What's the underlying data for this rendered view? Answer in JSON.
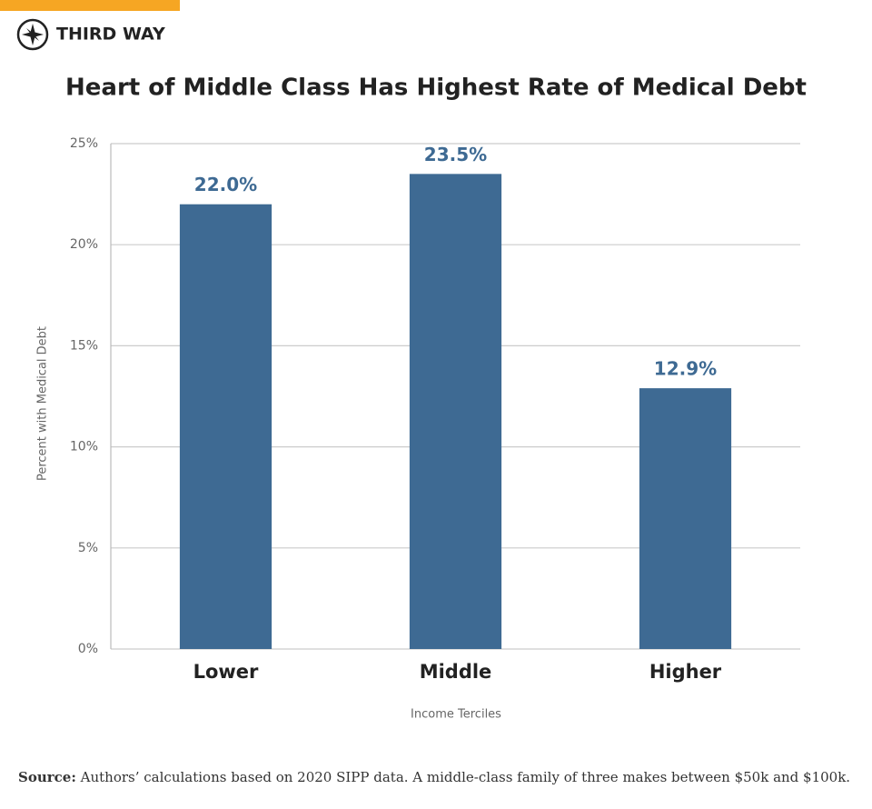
{
  "brand": "THIRD WAY",
  "chart_data": {
    "type": "bar",
    "title": "Heart of Middle Class Has Highest Rate of Medical Debt",
    "categories": [
      "Lower",
      "Middle",
      "Higher"
    ],
    "values": [
      22.0,
      23.5,
      12.9
    ],
    "value_labels": [
      "22.0%",
      "23.5%",
      "12.9%"
    ],
    "color": "#3e6a93",
    "ylim": [
      0,
      25
    ],
    "yticks": [
      {
        "value": 0,
        "label": "0%"
      },
      {
        "value": 5,
        "label": "5%"
      },
      {
        "value": 10,
        "label": "10%"
      },
      {
        "value": 15,
        "label": "15%"
      },
      {
        "value": 20,
        "label": "20%"
      },
      {
        "value": 25,
        "label": "25%"
      }
    ],
    "grid": true,
    "x_label": "Income Terciles",
    "y_label": "Percent with Medical Debt"
  },
  "source_label": "Source:",
  "source": "Authors’ calculations based on 2020 SIPP data. A middle-class family of three makes between $50k and $100k."
}
